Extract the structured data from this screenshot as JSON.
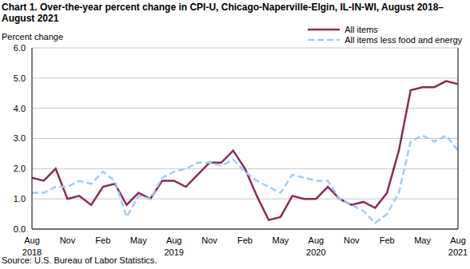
{
  "chart_data": {
    "type": "line",
    "title": "Chart 1. Over-the-year percent change in CPI-U, Chicago-Naperville-Elgin, IL-IN-WI, August 2018–August  2021",
    "y_label": "Percent change",
    "source": "Source: U.S. Bureau of Labor Statistics.",
    "categories": [
      "Aug\n2018",
      null,
      null,
      "Nov",
      null,
      null,
      "Feb",
      null,
      null,
      "May",
      null,
      null,
      "Aug\n2019",
      null,
      null,
      "Nov",
      null,
      null,
      "Feb",
      null,
      null,
      "May",
      null,
      null,
      "Aug\n2020",
      null,
      null,
      "Nov",
      null,
      null,
      "Feb",
      null,
      null,
      "May",
      null,
      null,
      "Aug\n2021"
    ],
    "series": [
      {
        "name": "All items",
        "color": "#8b2c5a",
        "line_style": "solid",
        "values": [
          1.7,
          1.6,
          2.0,
          1.0,
          1.1,
          0.8,
          1.4,
          1.5,
          0.8,
          1.2,
          1.0,
          1.6,
          1.6,
          1.4,
          1.8,
          2.2,
          2.2,
          2.6,
          2.0,
          1.1,
          0.3,
          0.4,
          1.1,
          1.0,
          1.0,
          1.4,
          1.0,
          0.8,
          0.9,
          0.7,
          1.2,
          2.6,
          4.6,
          4.7,
          4.7,
          4.9,
          4.8
        ]
      },
      {
        "name": "All items less food and energy",
        "color": "#a4cdf0",
        "line_style": "dashed",
        "values": [
          1.2,
          1.2,
          1.4,
          1.4,
          1.6,
          1.5,
          1.9,
          1.6,
          0.4,
          1.1,
          1.0,
          1.7,
          1.9,
          2.0,
          2.2,
          2.2,
          2.1,
          2.3,
          1.9,
          1.6,
          1.4,
          1.2,
          1.8,
          1.7,
          1.6,
          1.6,
          1.0,
          0.8,
          0.6,
          0.2,
          0.5,
          1.2,
          2.9,
          3.1,
          2.9,
          3.1,
          2.6
        ]
      }
    ],
    "ylim": [
      0,
      6
    ],
    "yticks": [
      {
        "value": 0,
        "label": "0.0"
      },
      {
        "value": 1,
        "label": "1.0"
      },
      {
        "value": 2,
        "label": "2.0"
      },
      {
        "value": 3,
        "label": "3.0"
      },
      {
        "value": 4,
        "label": "4.0"
      },
      {
        "value": 5,
        "label": "5.0"
      },
      {
        "value": 6,
        "label": "6.0"
      }
    ],
    "grid": true
  }
}
